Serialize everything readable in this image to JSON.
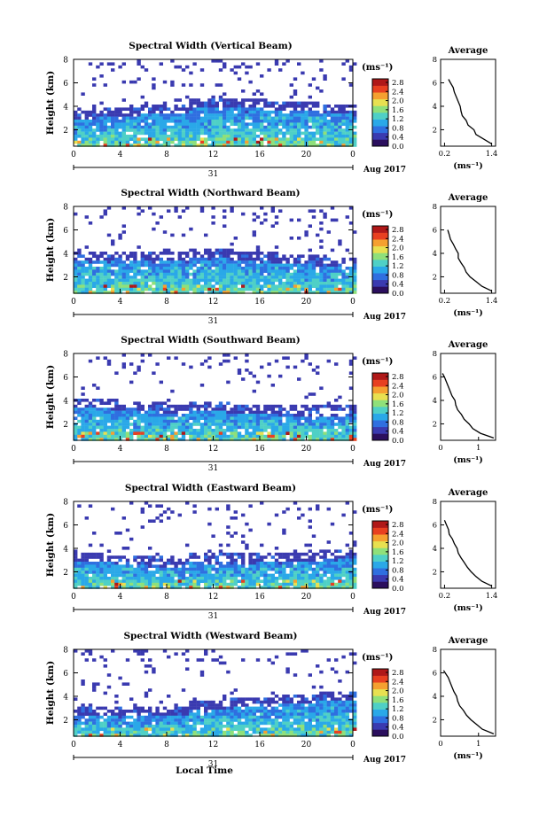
{
  "figure": {
    "xlabel": "Local Time",
    "colorbar": {
      "unit_label": "(ms⁻¹)",
      "ticks": [
        "2.8",
        "2.4",
        "2.0",
        "1.6",
        "1.2",
        "0.8",
        "0.4",
        "0.0"
      ],
      "colors": [
        "#2b0f5e",
        "#3a3ab0",
        "#2f6fe0",
        "#2aa8e8",
        "#4fd0c6",
        "#8fe07a",
        "#e8e050",
        "#f5a030",
        "#e84020",
        "#b01818"
      ]
    },
    "average_title": "Average",
    "average_xlabel": "(ms⁻¹)",
    "date_label": "31",
    "month_label": "Aug 2017"
  },
  "chart_data": [
    {
      "type": "heatmap",
      "title": "Spectral Width (Vertical Beam)",
      "ylabel": "Height (km)",
      "x_ticks": [
        "0",
        "4",
        "8",
        "12",
        "16",
        "20",
        "0"
      ],
      "y_ticks": [
        "8",
        "6",
        "4",
        "2"
      ],
      "xlim": [
        0,
        24
      ],
      "ylim": [
        0.6,
        8
      ],
      "average": {
        "x_ticks": [
          "0.2",
          "1.4"
        ],
        "xlim": [
          0.1,
          1.5
        ],
        "ylim": [
          0.6,
          8
        ],
        "y_ticks": [
          "8",
          "6",
          "4",
          "2"
        ],
        "profile": [
          [
            1.4,
            0.8
          ],
          [
            1.2,
            1.2
          ],
          [
            1.0,
            1.6
          ],
          [
            0.95,
            2.0
          ],
          [
            0.8,
            2.4
          ],
          [
            0.75,
            2.8
          ],
          [
            0.65,
            3.2
          ],
          [
            0.62,
            3.6
          ],
          [
            0.6,
            4.0
          ],
          [
            0.55,
            4.4
          ],
          [
            0.5,
            4.8
          ],
          [
            0.45,
            5.2
          ],
          [
            0.42,
            5.6
          ],
          [
            0.35,
            6.0
          ],
          [
            0.3,
            6.3
          ]
        ]
      }
    },
    {
      "type": "heatmap",
      "title": "Spectral Width (Northward Beam)",
      "ylabel": "Height (km)",
      "x_ticks": [
        "0",
        "4",
        "8",
        "12",
        "16",
        "20",
        "0"
      ],
      "y_ticks": [
        "8",
        "6",
        "4",
        "2"
      ],
      "xlim": [
        0,
        24
      ],
      "ylim": [
        0.6,
        8
      ],
      "average": {
        "x_ticks": [
          "0.2",
          "1.4"
        ],
        "xlim": [
          0.1,
          1.5
        ],
        "ylim": [
          0.6,
          8
        ],
        "y_ticks": [
          "8",
          "6",
          "4",
          "2"
        ],
        "profile": [
          [
            1.4,
            0.8
          ],
          [
            1.15,
            1.2
          ],
          [
            1.0,
            1.6
          ],
          [
            0.85,
            2.0
          ],
          [
            0.75,
            2.4
          ],
          [
            0.7,
            2.8
          ],
          [
            0.62,
            3.2
          ],
          [
            0.55,
            3.6
          ],
          [
            0.55,
            4.0
          ],
          [
            0.48,
            4.4
          ],
          [
            0.42,
            4.8
          ],
          [
            0.35,
            5.2
          ],
          [
            0.32,
            5.6
          ],
          [
            0.28,
            6.0
          ]
        ]
      }
    },
    {
      "type": "heatmap",
      "title": "Spectral Width (Southward Beam)",
      "ylabel": "Height (km)",
      "x_ticks": [
        "0",
        "4",
        "8",
        "12",
        "16",
        "20",
        "0"
      ],
      "y_ticks": [
        "8",
        "6",
        "4",
        "2"
      ],
      "xlim": [
        0,
        24
      ],
      "ylim": [
        0.6,
        8
      ],
      "average": {
        "x_ticks": [
          "0",
          "1"
        ],
        "xlim": [
          0,
          1.45
        ],
        "ylim": [
          0.6,
          8
        ],
        "y_ticks": [
          "8",
          "6",
          "4",
          "2"
        ],
        "profile": [
          [
            1.4,
            0.8
          ],
          [
            1.05,
            1.2
          ],
          [
            0.85,
            1.6
          ],
          [
            0.75,
            2.0
          ],
          [
            0.62,
            2.4
          ],
          [
            0.55,
            2.8
          ],
          [
            0.45,
            3.2
          ],
          [
            0.4,
            3.6
          ],
          [
            0.38,
            4.0
          ],
          [
            0.3,
            4.4
          ],
          [
            0.25,
            4.8
          ],
          [
            0.2,
            5.2
          ],
          [
            0.15,
            5.6
          ],
          [
            0.1,
            6.0
          ],
          [
            0.05,
            6.3
          ]
        ]
      }
    },
    {
      "type": "heatmap",
      "title": "Spectral Width (Eastward Beam)",
      "ylabel": "Height (km)",
      "x_ticks": [
        "0",
        "4",
        "8",
        "12",
        "16",
        "20",
        "0"
      ],
      "y_ticks": [
        "8",
        "6",
        "4",
        "2"
      ],
      "xlim": [
        0,
        24
      ],
      "ylim": [
        0.6,
        8
      ],
      "average": {
        "x_ticks": [
          "0.2",
          "1.4"
        ],
        "xlim": [
          0.1,
          1.5
        ],
        "ylim": [
          0.6,
          8
        ],
        "y_ticks": [
          "8",
          "6",
          "4",
          "2"
        ],
        "profile": [
          [
            1.4,
            0.8
          ],
          [
            1.15,
            1.2
          ],
          [
            1.0,
            1.6
          ],
          [
            0.88,
            2.0
          ],
          [
            0.78,
            2.4
          ],
          [
            0.7,
            2.8
          ],
          [
            0.62,
            3.2
          ],
          [
            0.55,
            3.6
          ],
          [
            0.52,
            4.0
          ],
          [
            0.45,
            4.4
          ],
          [
            0.4,
            4.8
          ],
          [
            0.32,
            5.2
          ],
          [
            0.3,
            5.6
          ],
          [
            0.25,
            6.0
          ],
          [
            0.2,
            6.4
          ]
        ]
      }
    },
    {
      "type": "heatmap",
      "title": "Spectral Width (Westward Beam)",
      "ylabel": "Height (km)",
      "x_ticks": [
        "0",
        "4",
        "8",
        "12",
        "16",
        "20",
        "0"
      ],
      "y_ticks": [
        "8",
        "6",
        "4",
        "2"
      ],
      "xlim": [
        0,
        24
      ],
      "ylim": [
        0.6,
        8
      ],
      "average": {
        "x_ticks": [
          "0",
          "1"
        ],
        "xlim": [
          0,
          1.45
        ],
        "ylim": [
          0.6,
          8
        ],
        "y_ticks": [
          "8",
          "6",
          "4",
          "2"
        ],
        "profile": [
          [
            1.4,
            0.8
          ],
          [
            1.1,
            1.2
          ],
          [
            0.95,
            1.6
          ],
          [
            0.8,
            2.0
          ],
          [
            0.68,
            2.4
          ],
          [
            0.6,
            2.8
          ],
          [
            0.5,
            3.2
          ],
          [
            0.45,
            3.6
          ],
          [
            0.42,
            4.0
          ],
          [
            0.35,
            4.4
          ],
          [
            0.3,
            4.8
          ],
          [
            0.25,
            5.2
          ],
          [
            0.2,
            5.6
          ],
          [
            0.12,
            6.0
          ],
          [
            0.08,
            6.2
          ]
        ]
      }
    }
  ]
}
